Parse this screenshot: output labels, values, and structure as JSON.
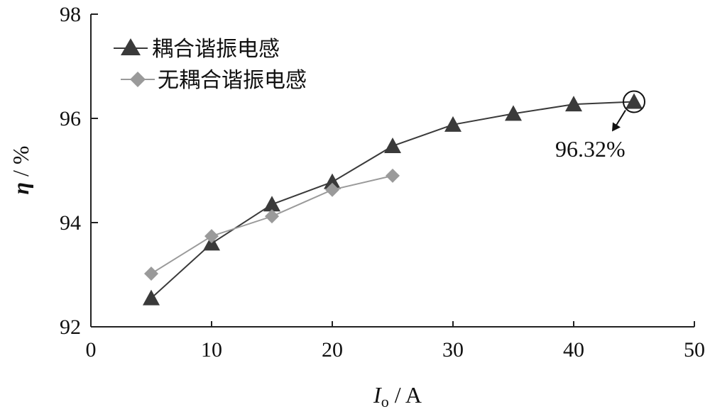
{
  "chart_data": {
    "type": "line",
    "title": "",
    "xlabel_symbol": "I",
    "xlabel_subscript": "o",
    "xlabel_unit": " / A",
    "ylabel_symbol": "η",
    "ylabel_unit": " / %",
    "xlim": [
      0,
      50
    ],
    "ylim": [
      92,
      98
    ],
    "xticks": [
      0,
      10,
      20,
      30,
      40,
      50
    ],
    "yticks": [
      92,
      94,
      96,
      98
    ],
    "grid": false,
    "legend_position": "top-left",
    "series": [
      {
        "name": "耦合谐振电感",
        "marker": "triangle",
        "color": "#3a3a3a",
        "x": [
          5,
          10,
          15,
          20,
          25,
          30,
          35,
          40,
          45
        ],
        "y": [
          92.55,
          93.6,
          94.35,
          94.78,
          95.47,
          95.88,
          96.09,
          96.27,
          96.32
        ]
      },
      {
        "name": "无耦合谐振电感",
        "marker": "diamond",
        "color": "#9a9a9a",
        "x": [
          5,
          10,
          15,
          20,
          25
        ],
        "y": [
          93.02,
          93.74,
          94.12,
          94.63,
          94.9
        ]
      }
    ],
    "annotation": {
      "text": "96.32%",
      "x": 45,
      "y": 96.32
    }
  }
}
